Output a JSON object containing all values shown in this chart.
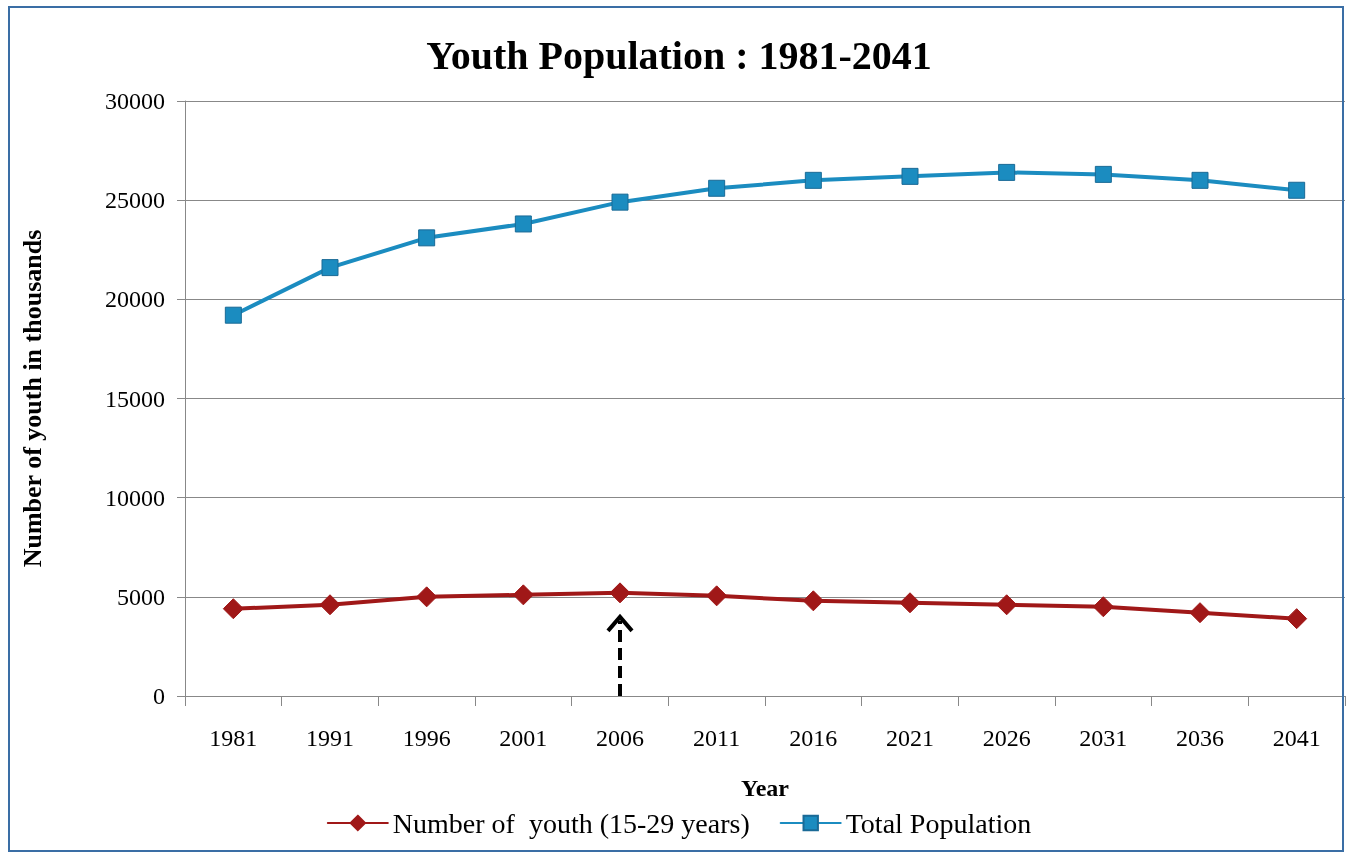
{
  "chart_data": {
    "type": "line",
    "title": "Youth Population : 1981-2041",
    "xlabel": "Year",
    "ylabel": "Number of youth in thousands",
    "categories": [
      "1981",
      "1991",
      "1996",
      "2001",
      "2006",
      "2011",
      "2016",
      "2021",
      "2026",
      "2031",
      "2036",
      "2041"
    ],
    "series": [
      {
        "name": "Number of  youth (15-29 years)",
        "color": "#a01818",
        "marker": "diamond",
        "values": [
          4400,
          4600,
          5000,
          5100,
          5200,
          5050,
          4800,
          4700,
          4600,
          4500,
          4200,
          3900
        ]
      },
      {
        "name": "Total Population",
        "color": "#1b8cc0",
        "marker": "square",
        "values": [
          19200,
          21600,
          23100,
          23800,
          24900,
          25600,
          26000,
          26200,
          26400,
          26300,
          26000,
          25500
        ]
      }
    ],
    "ylim": [
      0,
      30000
    ],
    "yticks": [
      0,
      5000,
      10000,
      15000,
      20000,
      25000,
      30000
    ],
    "grid": "y",
    "legend": "bottom",
    "line_style": "solid"
  }
}
